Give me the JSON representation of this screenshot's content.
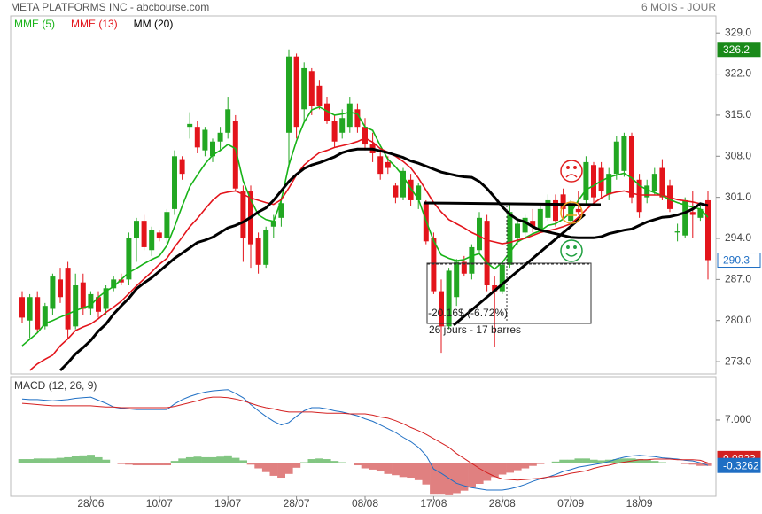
{
  "header": {
    "title": "META PLATFORMS INC - abcbourse.com",
    "period": "6 MOIS - JOUR"
  },
  "chart_data": [
    {
      "type": "candlestick",
      "categories": [
        null,
        null,
        null,
        null,
        null,
        null,
        null,
        null,
        null,
        "28/06",
        null,
        null,
        null,
        null,
        null,
        null,
        null,
        null,
        "10/07",
        null,
        null,
        null,
        null,
        null,
        null,
        null,
        null,
        "19/07",
        null,
        null,
        null,
        null,
        null,
        null,
        null,
        null,
        "28/07",
        null,
        null,
        null,
        null,
        null,
        null,
        null,
        null,
        "08/08",
        null,
        null,
        null,
        null,
        null,
        null,
        null,
        null,
        "17/08",
        null,
        null,
        null,
        null,
        null,
        null,
        null,
        null,
        "28/08",
        null,
        null,
        null,
        null,
        null,
        null,
        null,
        null,
        "07/09",
        null,
        null,
        null,
        null,
        null,
        null,
        null,
        null,
        "18/09",
        null,
        null,
        null,
        null,
        null,
        null,
        null,
        null,
        null
      ],
      "open": [
        284,
        280,
        284,
        279,
        282,
        287,
        289,
        279,
        286.5,
        282,
        284,
        282,
        285.5,
        287,
        287,
        294,
        297,
        292,
        295,
        294,
        299,
        307.5,
        313,
        313,
        309,
        308,
        310.5,
        312,
        314,
        302,
        302,
        294,
        289.5,
        296,
        297.5,
        312,
        325,
        316,
        322.5,
        320,
        317,
        314,
        312,
        313,
        316,
        313,
        310,
        308,
        307,
        303,
        301,
        304,
        300.5,
        300,
        294,
        285,
        279,
        284,
        290,
        288,
        292,
        297,
        286,
        285,
        289.5,
        294,
        295,
        297,
        295.5,
        297.5,
        300.5,
        301.5,
        297,
        299,
        300.5,
        306.5,
        306,
        301.5,
        305,
        305.5,
        311.5,
        304,
        301,
        302,
        306,
        303,
        295,
        294.5,
        298.5,
        297.5,
        300.5
      ],
      "high": [
        285,
        284.5,
        285,
        283,
        288,
        289,
        290,
        288,
        288,
        285,
        285,
        286,
        287.5,
        288,
        295,
        297.5,
        298,
        296,
        295.5,
        299,
        309,
        308,
        315.5,
        314,
        313,
        311,
        313,
        318,
        315,
        303,
        303,
        295,
        296,
        298,
        301,
        326.2,
        325.5,
        324,
        323,
        321,
        318,
        315,
        316,
        318,
        317,
        314.5,
        312,
        309,
        308,
        303.5,
        306,
        305,
        303.5,
        300.5,
        295,
        287,
        289,
        290.5,
        291,
        293,
        298.5,
        298,
        287.5,
        290,
        300,
        297.5,
        298,
        299,
        299.5,
        301.5,
        301.5,
        302.5,
        300.5,
        302,
        308,
        307,
        307,
        306,
        311.5,
        312,
        312,
        305,
        304,
        306,
        307.5,
        304,
        296.5,
        301,
        302,
        299.5,
        302
      ],
      "low": [
        279.5,
        277,
        278,
        278.5,
        281,
        283,
        277,
        278.5,
        281,
        281,
        280.5,
        281,
        285,
        286,
        286,
        290,
        292,
        291,
        293.5,
        293,
        298,
        304,
        311,
        308.5,
        308,
        307,
        309,
        311,
        302,
        290,
        289,
        288,
        289,
        294,
        296,
        306,
        311,
        314,
        315,
        316,
        313.5,
        309.5,
        311,
        312,
        312,
        309,
        307,
        304,
        305,
        300,
        300.5,
        299.5,
        299,
        293,
        284.5,
        274.5,
        278.5,
        282.5,
        287.5,
        287,
        291.5,
        285,
        275.5,
        284.5,
        289,
        293,
        294,
        295,
        295,
        297,
        296,
        297.5,
        296,
        298,
        299.5,
        300,
        301,
        300.5,
        304,
        304.5,
        300,
        297.5,
        300,
        301.5,
        300.5,
        298.5,
        293.5,
        294,
        294,
        297,
        287
      ],
      "close": [
        280.5,
        284,
        278.5,
        282.5,
        287.5,
        284,
        278.5,
        286,
        282,
        284.5,
        281.5,
        285.5,
        287,
        286.5,
        294,
        297,
        292.5,
        295.5,
        294,
        298.5,
        308,
        305,
        313.5,
        309.5,
        312.5,
        310.5,
        312,
        316,
        302.5,
        294,
        293,
        289.5,
        295.5,
        297,
        300,
        325,
        313,
        323,
        316.5,
        316.5,
        314,
        310.5,
        314.5,
        317,
        313,
        310,
        308.5,
        305,
        306,
        301,
        305.5,
        300.5,
        303,
        293.5,
        285,
        279,
        288.5,
        290,
        288,
        292.5,
        297.5,
        286,
        285,
        289.5,
        298.5,
        296.5,
        297.5,
        296,
        299,
        300.5,
        297,
        299,
        299.5,
        298.5,
        307,
        301,
        302,
        305,
        310.5,
        311.5,
        301,
        298.5,
        303,
        305,
        301,
        299,
        295.2,
        300.5,
        298,
        299,
        290.3
      ],
      "up_color": "#22a722",
      "down_color": "#e3141b",
      "series": [
        {
          "name": "MME (5)",
          "color": "#18b318",
          "values": [
            275.7,
            276.8,
            277.9,
            279.5,
            280,
            280.6,
            281.1,
            281.7,
            282.2,
            282.6,
            284,
            285,
            285.8,
            287,
            288.2,
            288.9,
            289.7,
            290.4,
            291,
            292.8,
            296,
            299.5,
            302.8,
            304.8,
            306.7,
            308.2,
            309,
            310,
            309.3,
            303.8,
            300.6,
            298,
            297.2,
            296.9,
            300.5,
            306.5,
            310.6,
            313.8,
            315.9,
            316.4,
            315.7,
            315,
            315.2,
            315.5,
            315.2,
            313,
            312.4,
            309.8,
            307.5,
            306.2,
            304.6,
            302.5,
            300.7,
            297,
            293.6,
            291.2,
            290.6,
            290.2,
            290.4,
            291,
            291.4,
            289.8,
            288.8,
            289.9,
            291.6,
            293.4,
            294.1,
            294.8,
            295.3,
            296.2,
            296.5,
            297.3,
            298.4,
            300.5,
            302.3,
            303,
            303.8,
            304.4,
            304.8,
            305.1,
            304.3,
            303,
            302.3,
            301.8,
            301.3,
            300.6,
            300.1,
            299.7,
            299.3,
            299,
            297.6
          ]
        },
        {
          "name": "MME (13)",
          "color": "#e3141b",
          "values": [
            null,
            271.5,
            272.6,
            273.4,
            274.1,
            275.7,
            276.9,
            278.3,
            278.9,
            279.4,
            280.3,
            281.4,
            282.3,
            283.3,
            284.6,
            285.9,
            287.1,
            288.3,
            289.6,
            290.6,
            292.5,
            294.2,
            296,
            297.4,
            299,
            300.5,
            301.6,
            301.9,
            302.1,
            301.5,
            300.9,
            300.5,
            300.1,
            299.8,
            300.6,
            302.6,
            304.8,
            306.5,
            307.6,
            308.6,
            309,
            309.5,
            309.8,
            310.1,
            310.5,
            311.1,
            310.4,
            309.3,
            308.7,
            308,
            307.1,
            306,
            304.3,
            302.2,
            300.1,
            298.5,
            297.2,
            296.5,
            295.8,
            295,
            294.4,
            293.7,
            293.4,
            293.1,
            293.3,
            293.7,
            294,
            294.5,
            295,
            295.3,
            295.6,
            296,
            296.5,
            297.6,
            298.9,
            300,
            300.9,
            301.6,
            301.9,
            302.1,
            301.7,
            301.4,
            301.4,
            301.4,
            301.4,
            301,
            300.6,
            300.4,
            300.2,
            299.9,
            299.6
          ]
        },
        {
          "name": "MM (20)",
          "color": "#000000",
          "values": [
            null,
            null,
            null,
            null,
            null,
            271.5,
            272.8,
            274.3,
            275.4,
            276.6,
            278.2,
            279.4,
            281.1,
            282.5,
            283.8,
            285.4,
            286.4,
            287.3,
            288.4,
            289.5,
            290.6,
            291.5,
            292.4,
            293.3,
            293.7,
            294.2,
            295,
            295.8,
            296.2,
            296.8,
            297.6,
            298.5,
            299.2,
            300.5,
            302.1,
            303.7,
            304.9,
            305.9,
            306.5,
            306.9,
            307.4,
            307.9,
            308.6,
            309,
            309.2,
            309.2,
            309.2,
            308.9,
            308.6,
            308.2,
            307.8,
            307.2,
            306.8,
            306.3,
            305.8,
            305.3,
            305,
            304.7,
            304.5,
            304.4,
            303.7,
            302.5,
            301,
            299.4,
            298.1,
            297.2,
            296.8,
            296,
            295.4,
            295.1,
            294.8,
            294.5,
            294.2,
            294.1,
            294.1,
            294.1,
            294.3,
            294.8,
            295.1,
            295.4,
            295.6,
            296.2,
            296.8,
            297.2,
            297.6,
            297.7,
            298,
            298.4,
            299,
            299.9,
            299.6
          ]
        }
      ],
      "ylim": [
        270.9,
        331.9
      ],
      "yticks": [
        {
          "value": 273,
          "label": "273.0"
        },
        {
          "value": 280,
          "label": "280.0"
        },
        {
          "value": 287,
          "label": "287.0"
        },
        {
          "value": 294,
          "label": "294.0"
        },
        {
          "value": 301,
          "label": "301.0"
        },
        {
          "value": 308,
          "label": "308.0"
        },
        {
          "value": 315,
          "label": "315.0"
        },
        {
          "value": 322,
          "label": "322.0"
        },
        {
          "value": 329,
          "label": "329.0"
        }
      ],
      "annotations": [
        "-20.16$ (-6.72%)",
        "26 jours - 17 barres"
      ]
    },
    {
      "type": "macd",
      "title": "MACD (12, 26, 9)",
      "series": [
        {
          "color": "#1f6fc4",
          "values": [
            10.4,
            10.3,
            10.3,
            10.2,
            10.1,
            10.2,
            10.3,
            10.5,
            10.6,
            10.7,
            10.2,
            9.7,
            9.1,
            8.9,
            8.8,
            8.7,
            8.7,
            8.7,
            8.7,
            8.7,
            9.6,
            10.3,
            10.8,
            11.2,
            11.5,
            11.7,
            11.8,
            11.9,
            11.3,
            10.6,
            9.5,
            8.5,
            7.6,
            6.8,
            6.2,
            6.6,
            7.6,
            8.5,
            9,
            9,
            8.8,
            8.5,
            8.3,
            8,
            7.7,
            7.2,
            6.8,
            6.2,
            5.6,
            5,
            4.2,
            3.5,
            2.6,
            1.3,
            -0.9,
            -1.6,
            -2.4,
            -3.2,
            -3.6,
            -3.9,
            -4.1,
            -4.3,
            -4.3,
            -4.3,
            -4.1,
            -3.8,
            -3.4,
            -2.9,
            -2.5,
            -2.2,
            -1.8,
            -1.3,
            -1,
            -0.6,
            -0.4,
            -0.2,
            0,
            0.3,
            0.7,
            1,
            1.2,
            1.3,
            1.2,
            1.1,
            0.9,
            0.8,
            0.7,
            0.5,
            0.4,
            0.1,
            -0.3262
          ]
        },
        {
          "color": "#d42020",
          "values": [
            9.7,
            9.6,
            9.5,
            9.4,
            9.3,
            9.3,
            9.3,
            9.3,
            9.3,
            9.3,
            9.2,
            9.1,
            9.1,
            9,
            9,
            9,
            9,
            9,
            9,
            9,
            9.2,
            9.5,
            9.8,
            10.1,
            10.5,
            10.7,
            10.7,
            10.6,
            10.4,
            10.1,
            9.7,
            9.3,
            9,
            8.8,
            8.5,
            8.3,
            8.3,
            8.3,
            8.3,
            8.2,
            8.1,
            8.1,
            8.1,
            8,
            8,
            8,
            7.8,
            7.5,
            7.3,
            6.9,
            6.4,
            5.8,
            5.3,
            4.7,
            4,
            3.3,
            2.6,
            1.6,
            0.8,
            0,
            -0.8,
            -1.5,
            -2.1,
            -2.5,
            -2.6,
            -2.7,
            -2.6,
            -2.5,
            -2.4,
            -2.2,
            -2.1,
            -1.9,
            -1.6,
            -1.4,
            -1.2,
            -0.8,
            -0.5,
            -0.3,
            0,
            0.2,
            0.4,
            0.6,
            0.6,
            0.7,
            0.7,
            0.7,
            0.6,
            0.6,
            0.6,
            0.5,
            0.0823
          ]
        }
      ],
      "histogram": {
        "pos_color": "#82c682",
        "neg_color": "#e08080",
        "values": [
          0.7,
          0.7,
          0.8,
          0.8,
          0.8,
          0.9,
          1,
          1.2,
          1.3,
          1.4,
          1,
          0.6,
          0,
          -0.1,
          -0.2,
          -0.3,
          -0.3,
          -0.3,
          -0.3,
          -0.3,
          0.4,
          0.8,
          1,
          1.1,
          1,
          1,
          1.1,
          1.3,
          0.9,
          0.5,
          -0.2,
          -0.8,
          -1.4,
          -2,
          -2.3,
          -1.7,
          -0.7,
          0.2,
          0.7,
          0.8,
          0.7,
          0.4,
          0.2,
          0,
          -0.3,
          -0.8,
          -1,
          -1.3,
          -1.7,
          -1.9,
          -2.2,
          -2.3,
          -2.7,
          -3.4,
          -4.9,
          -4.9,
          -5,
          -4.8,
          -4.4,
          -3.9,
          -3.3,
          -2.8,
          -2.2,
          -1.8,
          -1.5,
          -1.1,
          -0.8,
          -0.4,
          -0.1,
          0,
          0.3,
          0.6,
          0.6,
          0.8,
          0.8,
          0.6,
          0.5,
          0.6,
          0.7,
          0.8,
          0.8,
          0.7,
          0.6,
          0.4,
          0.2,
          0.1,
          0.1,
          -0.1,
          -0.2,
          -0.4,
          -0.4
        ]
      },
      "ylim": [
        -5.3,
        14
      ],
      "yticks": [
        {
          "value": 7,
          "label": "7.000"
        }
      ]
    }
  ]
}
